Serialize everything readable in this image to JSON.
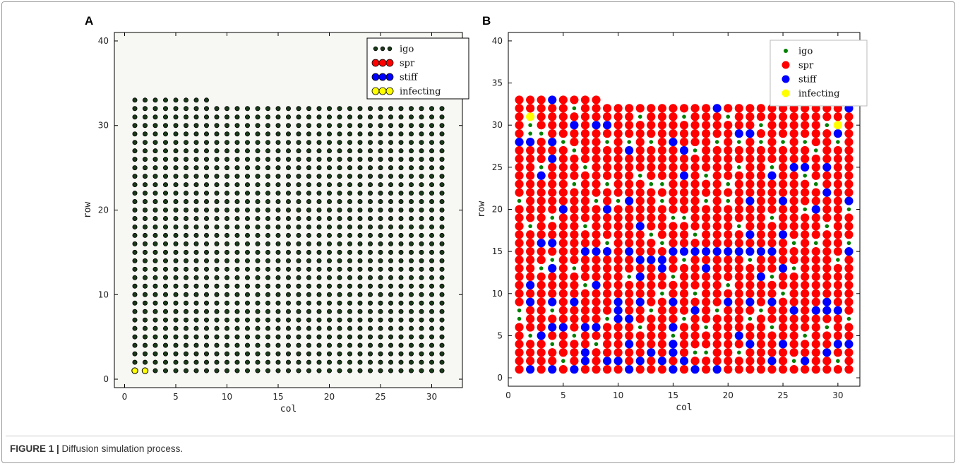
{
  "figure": {
    "caption_lead": "FIGURE 1 |",
    "caption_text": " Diffusion simulation process."
  },
  "panels": [
    {
      "label": "A"
    },
    {
      "label": "B"
    }
  ],
  "colors": {
    "igo": "#1a3a1a",
    "spr": "#ff0000",
    "stiff": "#0000ff",
    "infecting": "#ffff00"
  },
  "chart_data": [
    {
      "type": "scatter",
      "xlabel": "col",
      "ylabel": "row",
      "xlim": [
        -1,
        33
      ],
      "ylim": [
        -1,
        41
      ],
      "xticks": [
        0,
        5,
        10,
        15,
        20,
        25,
        30
      ],
      "yticks": [
        0,
        10,
        20,
        30,
        40
      ],
      "legend_position": "top-right",
      "grid": false,
      "series": [
        {
          "name": "igo",
          "color": "#1a3a1a",
          "description": "all lattice cells except infecting: rows 1-32, cols 1-31; row 33 cols 1-8"
        },
        {
          "name": "spr",
          "color": "#ff0000",
          "points": []
        },
        {
          "name": "stiff",
          "color": "#0000ff",
          "points": []
        },
        {
          "name": "infecting",
          "color": "#ffff00",
          "points": [
            [
              1,
              1
            ],
            [
              2,
              1
            ]
          ]
        }
      ],
      "lattice": {
        "cols": [
          1,
          31
        ],
        "rows": [
          1,
          32
        ],
        "extra_row": {
          "row": 33,
          "cols": [
            1,
            8
          ]
        }
      }
    },
    {
      "type": "scatter",
      "xlabel": "col",
      "ylabel": "row",
      "xlim": [
        0,
        32
      ],
      "ylim": [
        -1,
        41
      ],
      "xticks": [
        0,
        5,
        10,
        15,
        20,
        25,
        30
      ],
      "yticks": [
        0,
        5,
        10,
        15,
        20,
        25,
        30,
        35,
        40
      ],
      "legend_position": "top-right",
      "grid": false,
      "series": [
        {
          "name": "igo",
          "color": "#008000",
          "points": [
            [
              6,
              32
            ],
            [
              12,
              31
            ],
            [
              16,
              31
            ],
            [
              20,
              31
            ],
            [
              2,
              30
            ],
            [
              23,
              30
            ],
            [
              29,
              30
            ],
            [
              2,
              29
            ],
            [
              3,
              29
            ],
            [
              5,
              28
            ],
            [
              9,
              28
            ],
            [
              11,
              28
            ],
            [
              13,
              28
            ],
            [
              19,
              28
            ],
            [
              21,
              28
            ],
            [
              23,
              28
            ],
            [
              25,
              28
            ],
            [
              27,
              28
            ],
            [
              30,
              28
            ],
            [
              6,
              27
            ],
            [
              17,
              27
            ],
            [
              28,
              27
            ],
            [
              3,
              25
            ],
            [
              7,
              25
            ],
            [
              21,
              25
            ],
            [
              24,
              25
            ],
            [
              12,
              24
            ],
            [
              18,
              24
            ],
            [
              27,
              24
            ],
            [
              6,
              23
            ],
            [
              9,
              23
            ],
            [
              13,
              23
            ],
            [
              14,
              23
            ],
            [
              20,
              23
            ],
            [
              28,
              23
            ],
            [
              1,
              21
            ],
            [
              8,
              21
            ],
            [
              10,
              21
            ],
            [
              14,
              21
            ],
            [
              18,
              21
            ],
            [
              20,
              21
            ],
            [
              25,
              21
            ],
            [
              5,
              20
            ],
            [
              27,
              20
            ],
            [
              31,
              20
            ],
            [
              4,
              19
            ],
            [
              15,
              19
            ],
            [
              16,
              19
            ],
            [
              24,
              19
            ],
            [
              2,
              18
            ],
            [
              7,
              18
            ],
            [
              21,
              18
            ],
            [
              29,
              18
            ],
            [
              13,
              17
            ],
            [
              17,
              17
            ],
            [
              22,
              17
            ],
            [
              3,
              16
            ],
            [
              9,
              16
            ],
            [
              14,
              16
            ],
            [
              26,
              16
            ],
            [
              28,
              16
            ],
            [
              31,
              16
            ],
            [
              4,
              14
            ],
            [
              16,
              14
            ],
            [
              22,
              14
            ],
            [
              30,
              14
            ],
            [
              3,
              13
            ],
            [
              6,
              13
            ],
            [
              18,
              13
            ],
            [
              26,
              13
            ],
            [
              11,
              12
            ],
            [
              15,
              12
            ],
            [
              24,
              12
            ],
            [
              2,
              11
            ],
            [
              7,
              11
            ],
            [
              20,
              11
            ],
            [
              14,
              10
            ],
            [
              17,
              10
            ],
            [
              25,
              10
            ],
            [
              1,
              8
            ],
            [
              4,
              8
            ],
            [
              13,
              8
            ],
            [
              19,
              8
            ],
            [
              23,
              8
            ],
            [
              1,
              7
            ],
            [
              9,
              7
            ],
            [
              16,
              7
            ],
            [
              22,
              7
            ],
            [
              31,
              7
            ],
            [
              12,
              6
            ],
            [
              18,
              6
            ],
            [
              24,
              6
            ],
            [
              29,
              6
            ],
            [
              2,
              5
            ],
            [
              6,
              5
            ],
            [
              15,
              5
            ],
            [
              27,
              5
            ],
            [
              4,
              4
            ],
            [
              8,
              4
            ],
            [
              17,
              3
            ],
            [
              18,
              3
            ],
            [
              21,
              3
            ],
            [
              5,
              2
            ],
            [
              12,
              2
            ],
            [
              26,
              2
            ],
            [
              30,
              2
            ]
          ]
        },
        {
          "name": "spr",
          "color": "#ff0000",
          "description": "all remaining lattice cells (cols 1-31, rows 1-32; row 33 cols 1-8)"
        },
        {
          "name": "stiff",
          "color": "#0000ff",
          "points": [
            [
              4,
              33
            ],
            [
              19,
              32
            ],
            [
              31,
              32
            ],
            [
              6,
              30
            ],
            [
              8,
              30
            ],
            [
              9,
              30
            ],
            [
              21,
              29
            ],
            [
              22,
              29
            ],
            [
              30,
              29
            ],
            [
              1,
              28
            ],
            [
              2,
              28
            ],
            [
              4,
              28
            ],
            [
              15,
              28
            ],
            [
              11,
              27
            ],
            [
              16,
              27
            ],
            [
              4,
              26
            ],
            [
              3,
              24
            ],
            [
              16,
              24
            ],
            [
              26,
              25
            ],
            [
              27,
              25
            ],
            [
              29,
              25
            ],
            [
              24,
              24
            ],
            [
              22,
              21
            ],
            [
              11,
              21
            ],
            [
              25,
              21
            ],
            [
              31,
              21
            ],
            [
              5,
              20
            ],
            [
              9,
              20
            ],
            [
              28,
              20
            ],
            [
              29,
              22
            ],
            [
              12,
              18
            ],
            [
              22,
              17
            ],
            [
              25,
              17
            ],
            [
              3,
              16
            ],
            [
              4,
              16
            ],
            [
              7,
              15
            ],
            [
              8,
              15
            ],
            [
              9,
              15
            ],
            [
              11,
              15
            ],
            [
              15,
              15
            ],
            [
              16,
              15
            ],
            [
              17,
              15
            ],
            [
              18,
              15
            ],
            [
              19,
              15
            ],
            [
              20,
              15
            ],
            [
              21,
              15
            ],
            [
              22,
              15
            ],
            [
              23,
              15
            ],
            [
              24,
              15
            ],
            [
              31,
              15
            ],
            [
              12,
              14
            ],
            [
              13,
              14
            ],
            [
              14,
              14
            ],
            [
              4,
              13
            ],
            [
              14,
              13
            ],
            [
              18,
              13
            ],
            [
              25,
              13
            ],
            [
              12,
              12
            ],
            [
              23,
              12
            ],
            [
              2,
              11
            ],
            [
              8,
              11
            ],
            [
              2,
              9
            ],
            [
              4,
              9
            ],
            [
              6,
              9
            ],
            [
              10,
              9
            ],
            [
              12,
              9
            ],
            [
              15,
              9
            ],
            [
              20,
              9
            ],
            [
              22,
              9
            ],
            [
              24,
              9
            ],
            [
              29,
              9
            ],
            [
              10,
              8
            ],
            [
              17,
              8
            ],
            [
              26,
              8
            ],
            [
              28,
              8
            ],
            [
              29,
              8
            ],
            [
              30,
              8
            ],
            [
              10,
              7
            ],
            [
              11,
              7
            ],
            [
              4,
              6
            ],
            [
              5,
              6
            ],
            [
              7,
              6
            ],
            [
              8,
              6
            ],
            [
              15,
              6
            ],
            [
              3,
              5
            ],
            [
              21,
              5
            ],
            [
              11,
              4
            ],
            [
              15,
              4
            ],
            [
              22,
              4
            ],
            [
              25,
              4
            ],
            [
              30,
              4
            ],
            [
              31,
              4
            ],
            [
              7,
              3
            ],
            [
              13,
              3
            ],
            [
              15,
              3
            ],
            [
              29,
              3
            ],
            [
              7,
              2
            ],
            [
              9,
              2
            ],
            [
              10,
              2
            ],
            [
              12,
              2
            ],
            [
              14,
              2
            ],
            [
              16,
              2
            ],
            [
              24,
              2
            ],
            [
              27,
              2
            ],
            [
              2,
              1
            ],
            [
              4,
              1
            ],
            [
              6,
              1
            ],
            [
              11,
              1
            ],
            [
              15,
              1
            ],
            [
              17,
              1
            ],
            [
              19,
              1
            ]
          ]
        },
        {
          "name": "infecting",
          "color": "#ffff00",
          "points": [
            [
              2,
              31
            ],
            [
              30,
              30
            ]
          ]
        }
      ],
      "lattice": {
        "cols": [
          1,
          31
        ],
        "rows": [
          1,
          32
        ],
        "extra_row": {
          "row": 33,
          "cols": [
            1,
            8
          ]
        }
      }
    }
  ]
}
